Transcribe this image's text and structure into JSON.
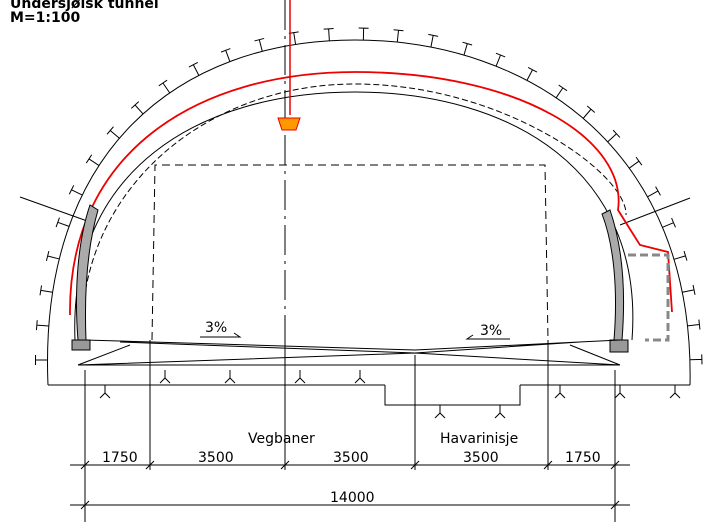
{
  "header": {
    "title": "Undersjøisk tunnel",
    "scale": "M=1:100"
  },
  "slopes": [
    {
      "label": "3%"
    },
    {
      "label": "3%"
    }
  ],
  "zones": {
    "road": "Vegbaner",
    "emergency": "Havarinisje"
  },
  "dimensions": [
    "1750",
    "3500",
    "3500",
    "3500",
    "1750"
  ],
  "total": "14000"
}
